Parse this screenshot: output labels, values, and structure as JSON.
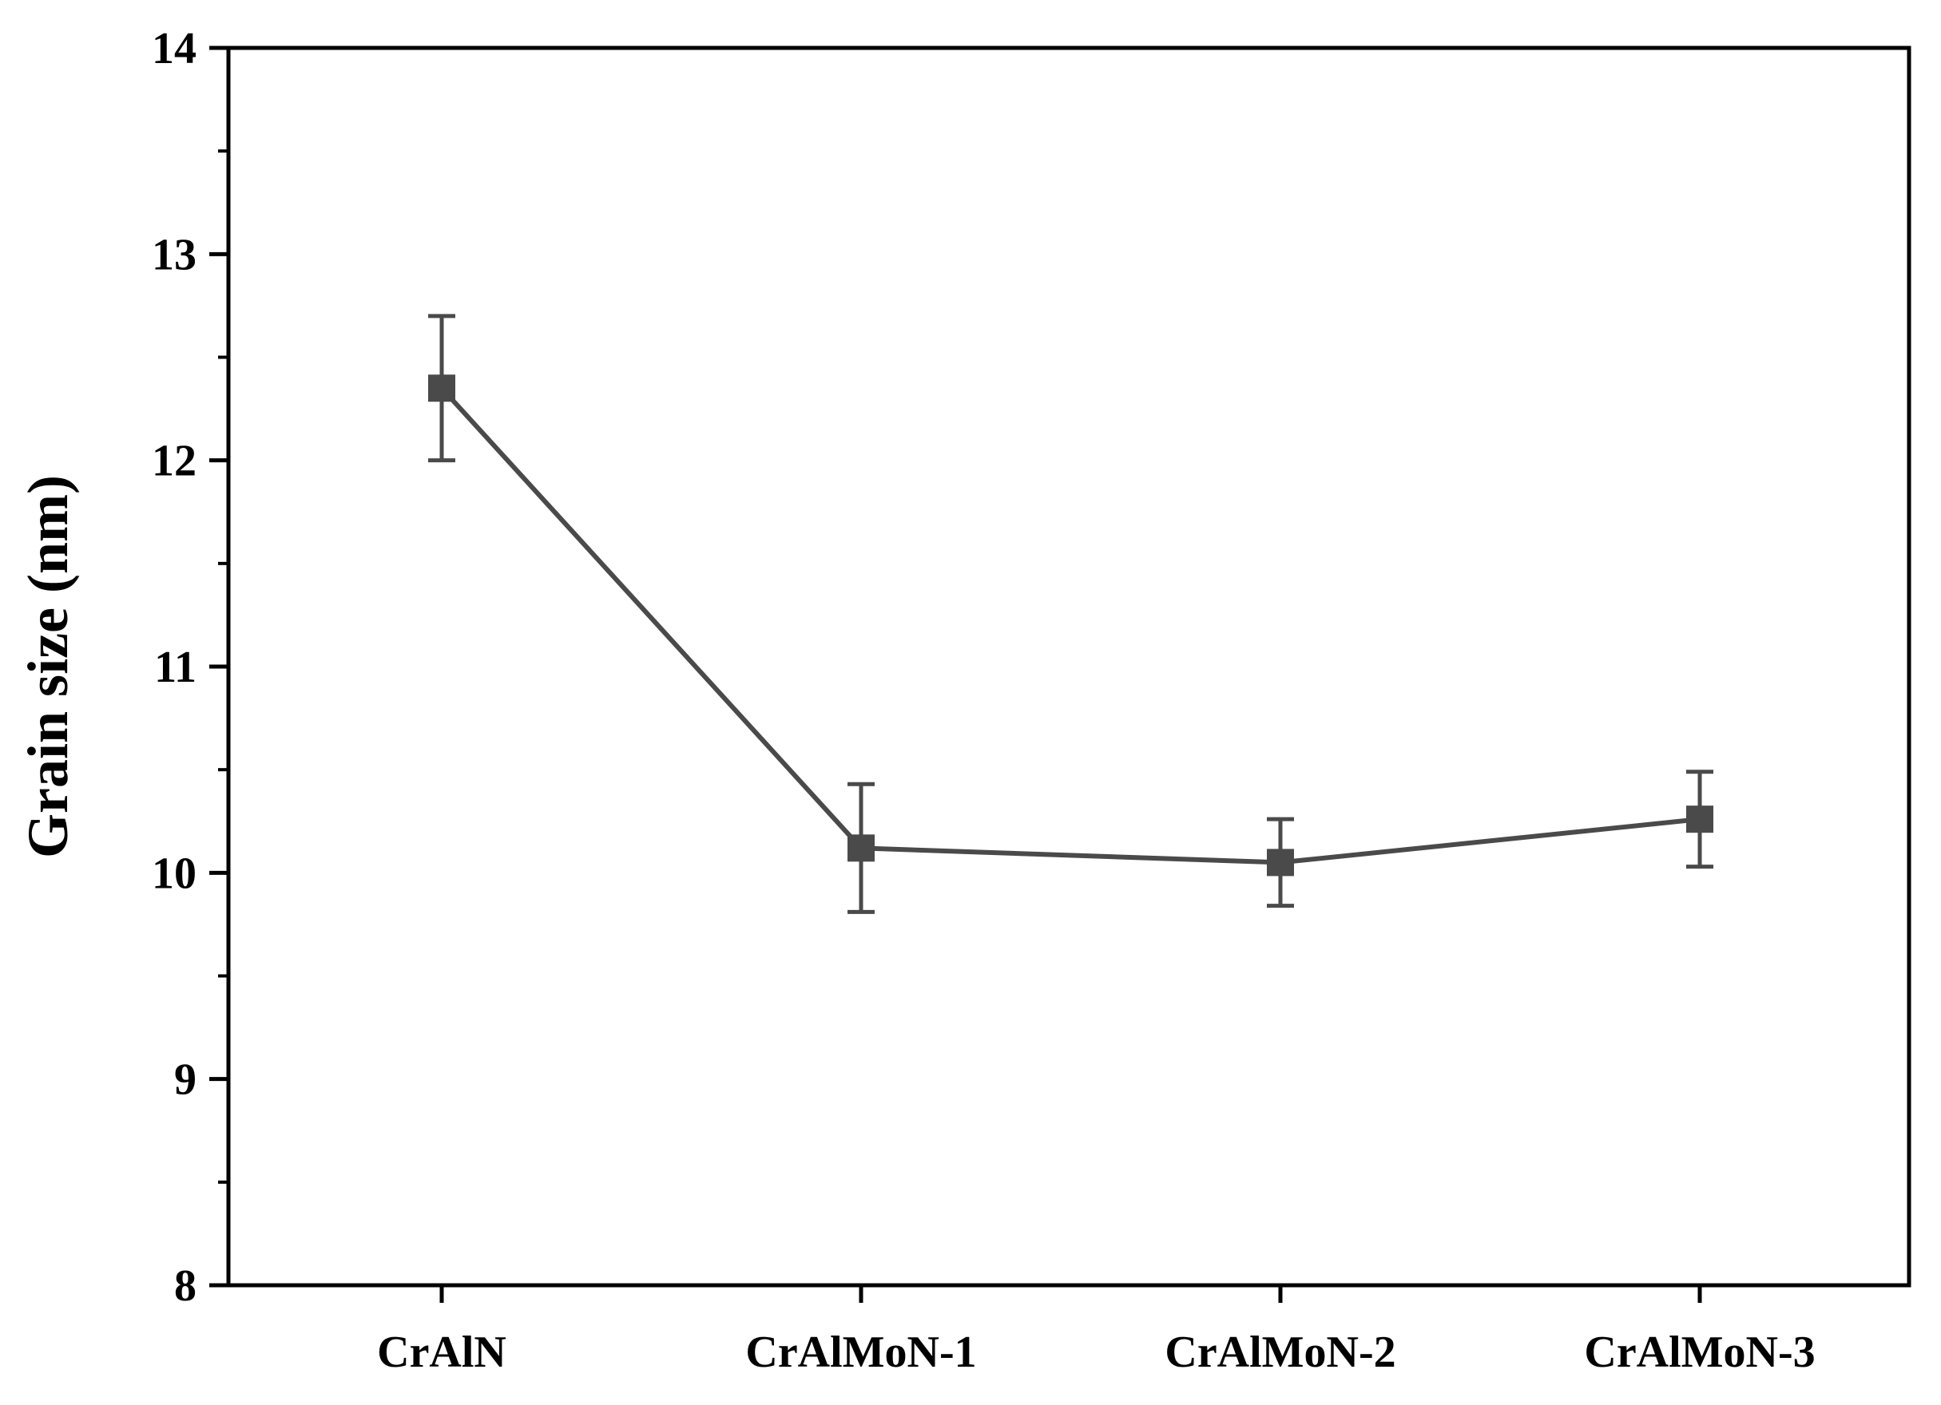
{
  "chart_data": {
    "type": "line",
    "title": "",
    "xlabel": "",
    "ylabel": "Grain size (nm)",
    "categories": [
      "CrAlN",
      "CrAlMoN-1",
      "CrAlMoN-2",
      "CrAlMoN-3"
    ],
    "series": [
      {
        "values": [
          12.35,
          10.12,
          10.05,
          10.26
        ],
        "error_low": [
          12.0,
          9.81,
          9.84,
          10.03
        ],
        "error_high": [
          12.7,
          10.43,
          10.26,
          10.49
        ],
        "marker": "square"
      }
    ],
    "ylim": [
      8,
      14
    ],
    "yticks": [
      "8",
      "9",
      "10",
      "11",
      "12",
      "13",
      "14"
    ],
    "grid": false,
    "legend": "none",
    "colors": {
      "series": "#4a4a4a",
      "axis": "#000000"
    }
  }
}
